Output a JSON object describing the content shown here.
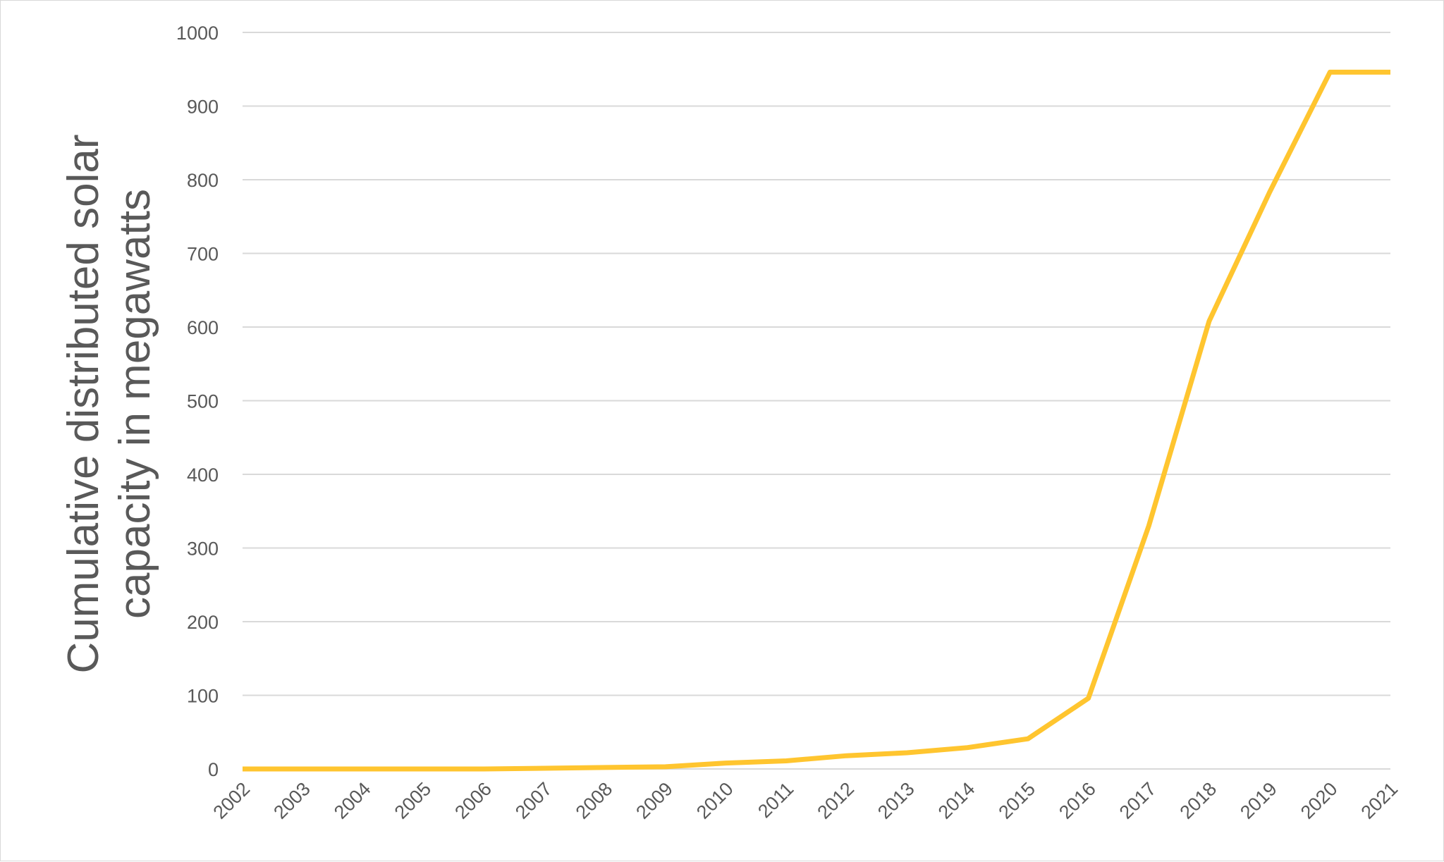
{
  "chart_data": {
    "type": "line",
    "title": "",
    "xlabel": "",
    "ylabel_line1": "Cumulative distributed solar",
    "ylabel_line2": "capacity in megawatts",
    "ylim": [
      0,
      1000
    ],
    "yticks": [
      0,
      100,
      200,
      300,
      400,
      500,
      600,
      700,
      800,
      900,
      1000
    ],
    "grid": true,
    "legend": "none",
    "categories": [
      "2002",
      "2003",
      "2004",
      "2005",
      "2006",
      "2007",
      "2008",
      "2009",
      "2010",
      "2011",
      "2012",
      "2013",
      "2014",
      "2015",
      "2016",
      "2017",
      "2018",
      "2019",
      "2020",
      "2021"
    ],
    "series": [
      {
        "color": "#FFC52F",
        "values": [
          0,
          0,
          0,
          0,
          0,
          1,
          2,
          3,
          8,
          11,
          18,
          22,
          29,
          41,
          96,
          330,
          608,
          783,
          946,
          946
        ]
      }
    ]
  }
}
